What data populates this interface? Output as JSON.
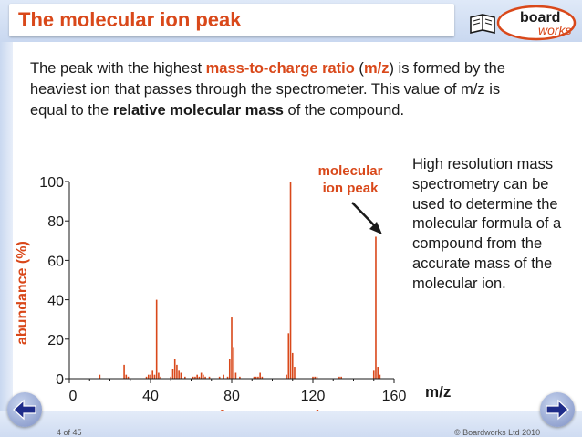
{
  "header": {
    "title": "The molecular ion peak",
    "logo_line1": "board",
    "logo_line2": "works"
  },
  "intro": {
    "t1": "The peak with the highest ",
    "t2": "mass-to-charge ratio",
    "t3": " (",
    "t4": "m/z",
    "t5": ") is formed by the heaviest ion that passes through the spectrometer. This value of m/z is equal to the ",
    "t6": "relative molecular mass",
    "t7": " of the compound."
  },
  "side_note": "High resolution mass spectrometry can be used to determine the molecular formula of a compound from the accurate mass of the molecular ion.",
  "annotation": {
    "line1": "molecular",
    "line2": "ion peak",
    "target_mz": 151
  },
  "chart_data": {
    "type": "bar",
    "title": "mass spectrum of paracetamol",
    "xlabel": "m/z",
    "ylabel": "abundance (%)",
    "xlim": [
      0,
      160
    ],
    "ylim": [
      0,
      100
    ],
    "x_ticks": [
      0,
      40,
      80,
      120,
      160
    ],
    "y_ticks": [
      0,
      20,
      40,
      60,
      80,
      100
    ],
    "series": [
      {
        "x": [
          15,
          27,
          28,
          29,
          38,
          39,
          40,
          41,
          42,
          43,
          44,
          45,
          50,
          51,
          52,
          53,
          54,
          55,
          57,
          61,
          62,
          63,
          64,
          65,
          66,
          67,
          69,
          74,
          76,
          78,
          79,
          80,
          81,
          82,
          84,
          91,
          92,
          93,
          94,
          95,
          107,
          108,
          109,
          110,
          111,
          120,
          121,
          122,
          133,
          134,
          150,
          151,
          152,
          153
        ],
        "values": [
          2,
          7,
          2,
          1,
          1,
          2,
          2,
          4,
          2,
          40,
          3,
          1,
          1,
          5,
          10,
          7,
          4,
          3,
          1,
          1,
          1,
          2,
          1,
          3,
          2,
          1,
          1,
          1,
          2,
          1,
          10,
          31,
          16,
          3,
          1,
          1,
          1,
          1,
          3,
          1,
          2,
          23,
          100,
          13,
          6,
          1,
          1,
          1,
          1,
          1,
          4,
          72,
          6,
          2
        ]
      }
    ]
  },
  "footer": {
    "pager": "4 of 45",
    "copyright": "© Boardworks Ltd 2010"
  }
}
